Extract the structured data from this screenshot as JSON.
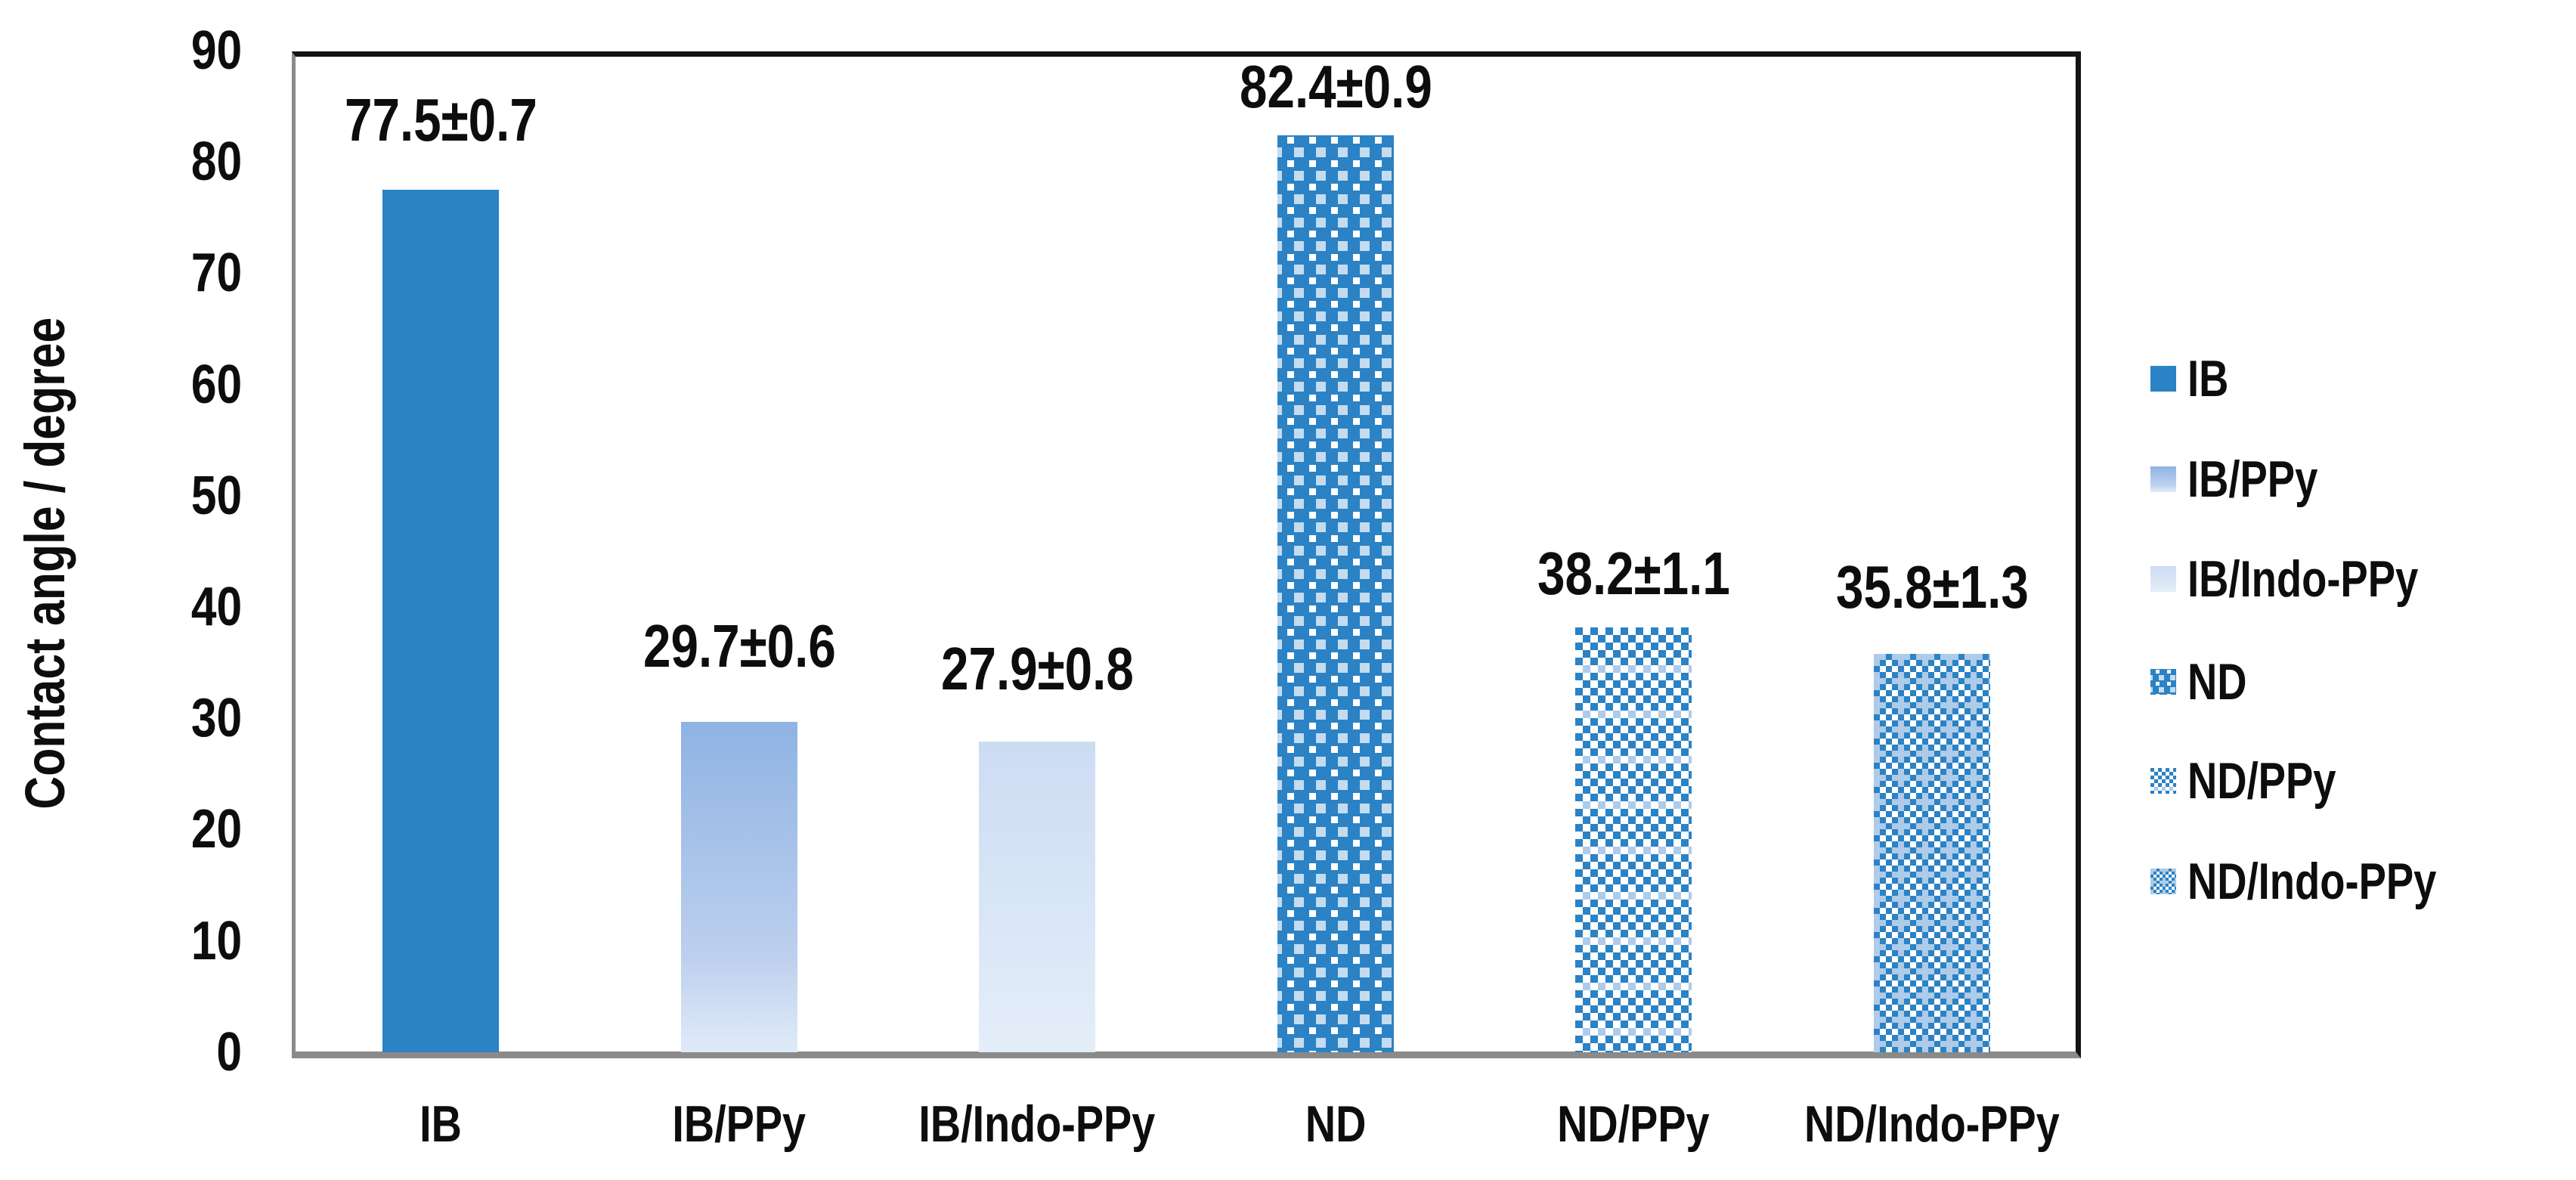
{
  "chart_data": {
    "type": "bar",
    "title": "",
    "xlabel": "",
    "ylabel": "Contact angle / degree",
    "ylim": [
      0,
      90
    ],
    "yticks": [
      90,
      80,
      70,
      60,
      50,
      40,
      30,
      20,
      10,
      0
    ],
    "grid": false,
    "legend_position": "right",
    "categories": [
      "IB",
      "IB/PPy",
      "IB/Indo-PPy",
      "ND",
      "ND/PPy",
      "ND/Indo-PPy"
    ],
    "values": [
      77.5,
      29.7,
      27.9,
      82.4,
      38.2,
      35.8
    ],
    "errors": [
      0.7,
      0.6,
      0.8,
      0.9,
      1.1,
      1.3
    ],
    "data_labels": [
      "77.5±0.7",
      "29.7±0.6",
      "27.9±0.8",
      "82.4±0.9",
      "38.2±1.1",
      "35.8±1.3"
    ],
    "legend": [
      "IB",
      "IB/PPy",
      "IB/Indo-PPy",
      "ND",
      "ND/PPy",
      "ND/Indo-PPy"
    ],
    "bar_styles": [
      "solid-blue",
      "gradient-light-blue",
      "gradient-pale-blue",
      "pattern-dotted-blue",
      "pattern-checker-blue",
      "pattern-checker-grid-blue"
    ]
  },
  "colors": {
    "bar_blue": "#2b82c4",
    "gradient_light_top": "#8fb3e3",
    "gradient_light_mid": "#bdd0ee",
    "gradient_light_bottom": "#dde9f7",
    "gradient_pale_top": "#ccdcf3",
    "gradient_pale_bottom": "#e4eef9",
    "pattern_band_light": "#aecbe9",
    "axis_gray": "#8a8a8a",
    "border_black": "#141414",
    "text": "#0d0d0d",
    "background": "#ffffff"
  }
}
